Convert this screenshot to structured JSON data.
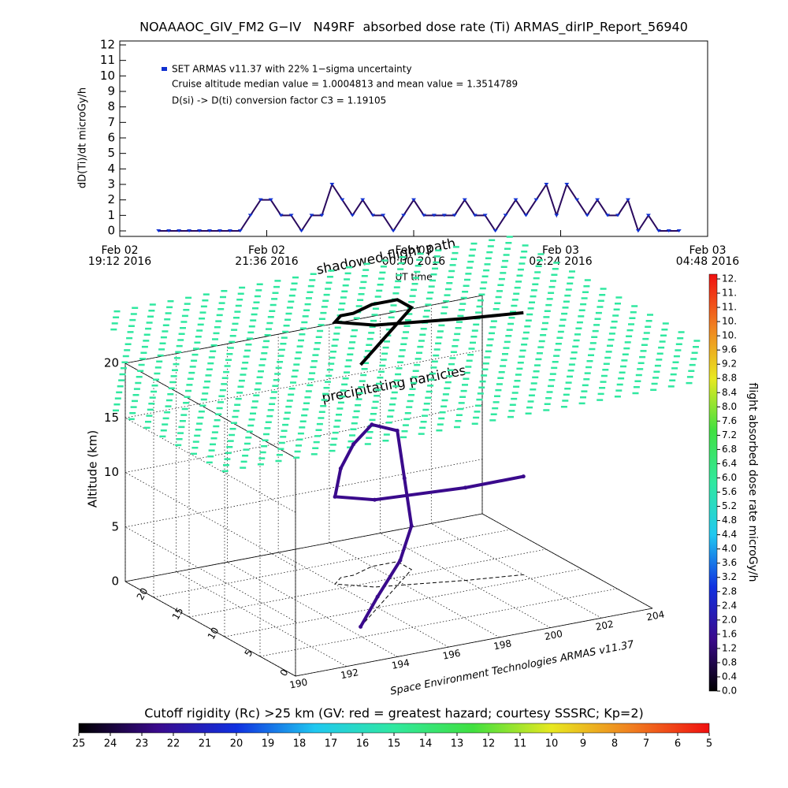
{
  "chart_data": [
    {
      "type": "line",
      "title": "NOAAAOC_GIV_FM2 G−IV   N49RF  absorbed dose rate (Ti) ARMAS_dirIP_Report_56940",
      "ylabel": "dD(Ti)/dt microGy/h",
      "xlabel": "UT time",
      "annotations": [
        "Cruise altitude median value = 1.0004813 and mean value = 1.3514789",
        "D(si) -> D(ti) conversion factor C3 = 1.19105"
      ],
      "xlim": [
        "2016-02-02T19:12",
        "2016-02-03T04:48"
      ],
      "xticks": [
        {
          "value": "2016-02-02T19:12",
          "label": [
            "Feb 02",
            "19:12 2016"
          ]
        },
        {
          "value": "2016-02-02T21:36",
          "label": [
            "Feb 02",
            "21:36 2016"
          ]
        },
        {
          "value": "2016-02-03T00:00",
          "label": [
            "Feb 03",
            "00:00 2016"
          ]
        },
        {
          "value": "2016-02-03T02:24",
          "label": [
            "Feb 03",
            "02:24 2016"
          ]
        },
        {
          "value": "2016-02-03T04:48",
          "label": [
            "Feb 03",
            "04:48 2016"
          ]
        }
      ],
      "ylim": [
        0,
        12
      ],
      "yticks": [
        0,
        1,
        2,
        3,
        4,
        5,
        6,
        7,
        8,
        9,
        10,
        11,
        12
      ],
      "x": [
        "2016-02-02T19:50",
        "2016-02-02T20:00",
        "2016-02-02T20:10",
        "2016-02-02T20:20",
        "2016-02-02T20:30",
        "2016-02-02T20:40",
        "2016-02-02T20:50",
        "2016-02-02T21:00",
        "2016-02-02T21:10",
        "2016-02-02T21:20",
        "2016-02-02T21:30",
        "2016-02-02T21:40",
        "2016-02-02T21:50",
        "2016-02-02T22:00",
        "2016-02-02T22:10",
        "2016-02-02T22:20",
        "2016-02-02T22:30",
        "2016-02-02T22:40",
        "2016-02-02T22:50",
        "2016-02-02T23:00",
        "2016-02-02T23:10",
        "2016-02-02T23:20",
        "2016-02-02T23:30",
        "2016-02-02T23:40",
        "2016-02-02T23:50",
        "2016-02-03T00:00",
        "2016-02-03T00:10",
        "2016-02-03T00:20",
        "2016-02-03T00:30",
        "2016-02-03T00:40",
        "2016-02-03T00:50",
        "2016-02-03T01:00",
        "2016-02-03T01:10",
        "2016-02-03T01:20",
        "2016-02-03T01:30",
        "2016-02-03T01:40",
        "2016-02-03T01:50",
        "2016-02-03T02:00",
        "2016-02-03T02:10",
        "2016-02-03T02:20",
        "2016-02-03T02:30",
        "2016-02-03T02:40",
        "2016-02-03T02:50",
        "2016-02-03T03:00",
        "2016-02-03T03:10",
        "2016-02-03T03:20",
        "2016-02-03T03:30",
        "2016-02-03T03:40",
        "2016-02-03T03:50",
        "2016-02-03T04:00",
        "2016-02-03T04:10",
        "2016-02-03T04:20"
      ],
      "series": [
        {
          "name": "SET ARMAS v11.37 with 22% 1−sigma uncertainty",
          "color": "#2a0a5e",
          "marker_color": "#1030d0",
          "values": [
            0,
            0,
            0,
            0,
            0,
            0,
            0,
            0,
            0,
            1,
            2,
            2,
            1,
            1,
            0,
            1,
            1,
            3,
            2,
            1,
            2,
            1,
            1,
            0,
            1,
            2,
            1,
            1,
            1,
            1,
            2,
            1,
            1,
            0,
            1,
            2,
            1,
            2,
            3,
            1,
            3,
            2,
            1,
            2,
            1,
            1,
            2,
            0,
            1,
            0,
            0,
            0
          ]
        }
      ]
    },
    {
      "type": "line3d",
      "zlabel": "Altitude (km)",
      "credit": "Space Environment Technologies ARMAS v11.37",
      "annotations": [
        "shadowed flight path",
        "precipitating particles"
      ],
      "xlim": [
        190,
        204
      ],
      "xticks": [
        190,
        192,
        194,
        196,
        198,
        200,
        202,
        204
      ],
      "ylim": [
        0,
        24
      ],
      "yticks": [
        0,
        5,
        10,
        15,
        20
      ],
      "zlim": [
        0,
        20
      ],
      "zticks": [
        0,
        5,
        10,
        15,
        20
      ],
      "field_color": "#30e8a0",
      "series": [
        {
          "color": "#3a0a8c",
          "shadow_color": "#000000",
          "lon": [
            194.5,
            196,
            198,
            199,
            199,
            199,
            198,
            197,
            196.5,
            196,
            197,
            200,
            202
          ],
          "lat": [
            7,
            10,
            14,
            16,
            17,
            18,
            18,
            17,
            17,
            16,
            14,
            12,
            11
          ],
          "alt": [
            0,
            1,
            2,
            4,
            8,
            12,
            13,
            12,
            10,
            8,
            8,
            8.5,
            9
          ]
        }
      ]
    },
    {
      "type": "colorbar",
      "orientation": "vertical",
      "label": "flight absorbed dose rate microGy/h",
      "colormap": [
        "#000000",
        "#3a0a8c",
        "#1030e0",
        "#20c8f0",
        "#30e8a0",
        "#40e040",
        "#e8e820",
        "#f08020",
        "#f01010"
      ],
      "ylim": [
        0,
        11.6
      ],
      "yticks": [
        {
          "value": 0,
          "label": "0.0"
        },
        0.4,
        0.8,
        1.2,
        1.6,
        {
          "value": 2,
          "label": "2.0"
        },
        2.4,
        2.8,
        3.2,
        3.6,
        {
          "value": 4,
          "label": "4.0"
        },
        4.4,
        4.8,
        5.2,
        5.6,
        {
          "value": 6,
          "label": "6.0"
        },
        6.4,
        6.8,
        7.2,
        7.6,
        {
          "value": 8,
          "label": "8.0"
        },
        8.4,
        8.8,
        9.2,
        9.6,
        {
          "value": 10,
          "label": "10."
        },
        {
          "value": 10.4,
          "label": "10."
        },
        {
          "value": 10.8,
          "label": "11."
        },
        {
          "value": 11.2,
          "label": "11."
        },
        {
          "value": 11.6,
          "label": "12."
        }
      ]
    },
    {
      "type": "colorbar",
      "orientation": "horizontal",
      "label": "Cutoff rigidity (Rc) >25 km (GV: red = greatest hazard; courtesy SSSRC; Kp=2)",
      "colormap": [
        "#000000",
        "#3a0a8c",
        "#1030e0",
        "#20c8f0",
        "#30e8a0",
        "#40e040",
        "#e8e820",
        "#f08020",
        "#f01010"
      ],
      "xlim": [
        25,
        5
      ],
      "xticks": [
        25,
        24,
        23,
        22,
        21,
        20,
        19,
        18,
        17,
        16,
        15,
        14,
        13,
        12,
        11,
        10,
        9,
        8,
        7,
        6,
        5
      ]
    }
  ]
}
